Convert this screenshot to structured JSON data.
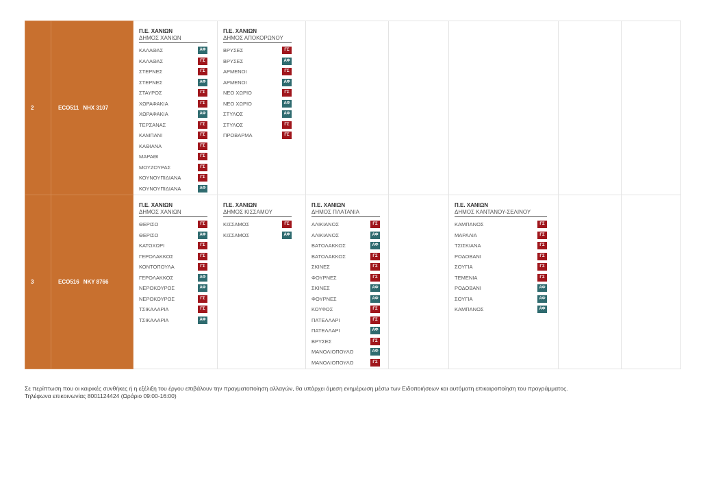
{
  "colors": {
    "accent_orange": "#c8702f",
    "badge_gs": "#a0161c",
    "badge_af": "#2f6b6f"
  },
  "routes": [
    {
      "number": "2",
      "code": "ECO511",
      "plate": "NHX 3107",
      "districts": [
        {
          "pe": "Π.Ε. ΧΑΝΙΩΝ",
          "dimos": "ΔΗΜΟΣ ΧΑΝΙΩΝ",
          "villages": [
            {
              "name": "ΚΑΛΑΘΑΣ",
              "type": "ΑΦ"
            },
            {
              "name": "ΚΑΛΑΘΑΣ",
              "type": "ΓΣ"
            },
            {
              "name": "ΣΤΕΡΝΕΣ",
              "type": "ΓΣ"
            },
            {
              "name": "ΣΤΕΡΝΕΣ",
              "type": "ΑΦ"
            },
            {
              "name": "ΣΤΑΥΡΟΣ",
              "type": "ΓΣ"
            },
            {
              "name": "ΧΩΡΑΦΑΚΙΑ",
              "type": "ΓΣ"
            },
            {
              "name": "ΧΩΡΑΦΑΚΙΑ",
              "type": "ΑΦ"
            },
            {
              "name": "ΤΕΡΣΑΝΑΣ",
              "type": "ΓΣ"
            },
            {
              "name": "ΚΑΜΠΑΝΙ",
              "type": "ΓΣ"
            },
            {
              "name": "ΚΑΘΙΑΝΑ",
              "type": "ΓΣ"
            },
            {
              "name": "ΜΑΡΑΘΙ",
              "type": "ΓΣ"
            },
            {
              "name": "ΜΟΥΖΟΥΡΑΣ",
              "type": "ΓΣ"
            },
            {
              "name": "ΚΟΥΝΟΥΠΙΔΙΑΝΑ",
              "type": "ΓΣ"
            },
            {
              "name": "ΚΟΥΝΟΥΠΙΔΙΑΝΑ",
              "type": "ΑΦ"
            }
          ]
        },
        {
          "pe": "Π.Ε. ΧΑΝΙΩΝ",
          "dimos": "ΔΗΜΟΣ ΑΠΟΚΟΡΩΝΟΥ",
          "villages": [
            {
              "name": "ΒΡΥΣΕΣ",
              "type": "ΓΣ"
            },
            {
              "name": "ΒΡΥΣΕΣ",
              "type": "ΑΦ"
            },
            {
              "name": "ΑΡΜΕΝΟΙ",
              "type": "ΓΣ"
            },
            {
              "name": "ΑΡΜΕΝΟΙ",
              "type": "ΑΦ"
            },
            {
              "name": "ΝΕΟ ΧΩΡΙΟ",
              "type": "ΓΣ"
            },
            {
              "name": "ΝΕΟ ΧΩΡΙΟ",
              "type": "ΑΦ"
            },
            {
              "name": "ΣΤΥΛΟΣ",
              "type": "ΑΦ"
            },
            {
              "name": "ΣΤΥΛΟΣ",
              "type": "ΓΣ"
            },
            {
              "name": "ΠΡΟΒΑΡΜΑ",
              "type": "ΓΣ"
            }
          ]
        }
      ]
    },
    {
      "number": "3",
      "code": "ECO516",
      "plate": "NKY 8766",
      "districts": [
        {
          "pe": "Π.Ε. ΧΑΝΙΩΝ",
          "dimos": "ΔΗΜΟΣ ΧΑΝΙΩΝ",
          "villages": [
            {
              "name": "ΘΕΡΙΣΟ",
              "type": "ΓΣ"
            },
            {
              "name": "ΘΕΡΙΣΟ",
              "type": "ΑΦ"
            },
            {
              "name": "ΚΑΤΩΧΩΡΙ",
              "type": "ΓΣ"
            },
            {
              "name": "ΓΕΡΟΛΑΚΚΟΣ",
              "type": "ΓΣ"
            },
            {
              "name": "ΚΟΝΤΟΠΟΥΛΑ",
              "type": "ΓΣ"
            },
            {
              "name": "ΓΕΡΟΛΑΚΚΟΣ",
              "type": "ΑΦ"
            },
            {
              "name": "ΝΕΡΟΚΟΥΡΟΣ",
              "type": "ΑΦ"
            },
            {
              "name": "ΝΕΡΟΚΟΥΡΟΣ",
              "type": "ΓΣ"
            },
            {
              "name": "ΤΣΙΚΑΛΑΡΙΑ",
              "type": "ΓΣ"
            },
            {
              "name": "ΤΣΙΚΑΛΑΡΙΑ",
              "type": "ΑΦ"
            }
          ]
        },
        {
          "pe": "Π.Ε. ΧΑΝΙΩΝ",
          "dimos": "ΔΗΜΟΣ ΚΙΣΣΑΜΟΥ",
          "villages": [
            {
              "name": "ΚΙΣΣΑΜΟΣ",
              "type": "ΓΣ"
            },
            {
              "name": "ΚΙΣΣΑΜΟΣ",
              "type": "ΑΦ"
            }
          ]
        },
        {
          "pe": "Π.Ε. ΧΑΝΙΩΝ",
          "dimos": "ΔΗΜΟΣ ΠΛΑΤΑΝΙΑ",
          "villages": [
            {
              "name": "ΑΛΙΚΙΑΝΟΣ",
              "type": "ΓΣ"
            },
            {
              "name": "ΑΛΙΚΙΑΝΟΣ",
              "type": "ΑΦ"
            },
            {
              "name": "ΒΑΤΟΛΑΚΚΟΣ",
              "type": "ΑΦ"
            },
            {
              "name": "ΒΑΤΟΛΑΚΚΟΣ",
              "type": "ΓΣ"
            },
            {
              "name": "ΣΚΙΝΕΣ",
              "type": "ΓΣ"
            },
            {
              "name": "ΦΟΥΡΝΕΣ",
              "type": "ΓΣ"
            },
            {
              "name": "ΣΚΙΝΕΣ",
              "type": "ΑΦ"
            },
            {
              "name": "ΦΟΥΡΝΕΣ",
              "type": "ΑΦ"
            },
            {
              "name": "ΚΟΥΦΟΣ",
              "type": "ΓΣ"
            },
            {
              "name": "ΠΑΤΕΛΛΑΡΙ",
              "type": "ΓΣ"
            },
            {
              "name": "ΠΑΤΕΛΛΑΡΙ",
              "type": "ΑΦ"
            },
            {
              "name": "ΒΡΥΣΕΣ",
              "type": "ΓΣ"
            },
            {
              "name": "ΜΑΝΟΛΙΟΠΟΥΛΟ",
              "type": "ΑΦ"
            },
            {
              "name": "ΜΑΝΟΛΙΟΠΟΥΛΟ",
              "type": "ΓΣ"
            }
          ]
        },
        {
          "pe": "Π.Ε. ΧΑΝΙΩΝ",
          "dimos": "ΔΗΜΟΣ ΚΑΝΤΑΝΟΥ-ΣΕΛΙΝΟΥ",
          "villages": [
            {
              "name": "ΚΑΜΠΑΝΟΣ",
              "type": "ΓΣ"
            },
            {
              "name": "ΜΑΡΑΛΙΑ",
              "type": "ΓΣ"
            },
            {
              "name": "ΤΣΙΣΚΙΑΝΑ",
              "type": "ΓΣ"
            },
            {
              "name": "ΡΟΔΟΒΑΝΙ",
              "type": "ΓΣ"
            },
            {
              "name": "ΣΟΥΓΙΑ",
              "type": "ΓΣ"
            },
            {
              "name": "ΤΕΜΕΝΙΑ",
              "type": "ΓΣ"
            },
            {
              "name": "ΡΟΔΟΒΑΝΙ",
              "type": "ΑΦ"
            },
            {
              "name": "ΣΟΥΓΙΑ",
              "type": "ΑΦ"
            },
            {
              "name": "ΚΑΜΠΑΝΟΣ",
              "type": "ΑΦ"
            }
          ]
        }
      ]
    }
  ],
  "footer": {
    "line1": "Σε περίπτωση που οι καιρικές συνθήκες ή η εξέλιξη του έργου επιβάλουν την πραγματοποίηση αλλαγών, θα υπάρχει άμεση ενημέρωση μέσω των Ειδοποιήσεων και αυτόματη επικαιροποίηση του προγράμματος.",
    "line2": "Τηλέφωνα επικοινωνίας 8001124424 (Ωράριο 09:00-16:00)"
  }
}
